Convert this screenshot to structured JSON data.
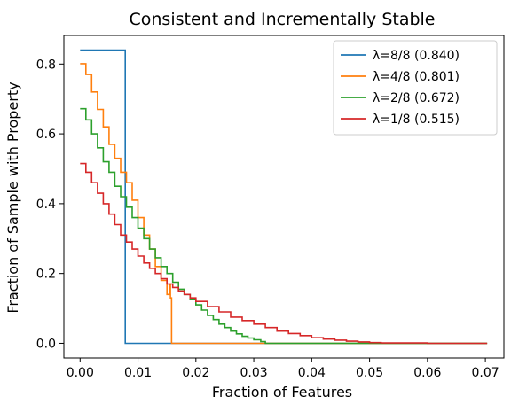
{
  "chart_data": {
    "type": "line",
    "title": "Consistent and Incrementally Stable",
    "xlabel": "Fraction of Features",
    "ylabel": "Fraction of Sample with Property",
    "xlim": [
      -0.0028,
      0.0732
    ],
    "ylim": [
      -0.042,
      0.882
    ],
    "xticks": [
      0.0,
      0.01,
      0.02,
      0.03,
      0.04,
      0.05,
      0.06,
      0.07
    ],
    "xtick_labels": [
      "0.00",
      "0.01",
      "0.02",
      "0.03",
      "0.04",
      "0.05",
      "0.06",
      "0.07"
    ],
    "yticks": [
      0.0,
      0.2,
      0.4,
      0.6,
      0.8
    ],
    "ytick_labels": [
      "0.0",
      "0.2",
      "0.4",
      "0.6",
      "0.8"
    ],
    "grid": false,
    "legend_position": "top-right",
    "series": [
      {
        "name": "λ=8/8 (0.840)",
        "color": "#1f77b4",
        "x": [
          0.0,
          0.0078,
          0.0078,
          0.0703
        ],
        "y": [
          0.84,
          0.84,
          0.0,
          0.0
        ]
      },
      {
        "name": "λ=4/8 (0.801)",
        "color": "#ff7f0e",
        "x": [
          0.0,
          0.001,
          0.002,
          0.003,
          0.004,
          0.005,
          0.006,
          0.007,
          0.008,
          0.009,
          0.01,
          0.011,
          0.012,
          0.013,
          0.014,
          0.015,
          0.0155,
          0.0156,
          0.0158,
          0.0158,
          0.0703
        ],
        "y": [
          0.801,
          0.77,
          0.72,
          0.67,
          0.62,
          0.57,
          0.53,
          0.49,
          0.46,
          0.41,
          0.36,
          0.31,
          0.27,
          0.22,
          0.18,
          0.14,
          0.17,
          0.13,
          0.12,
          0.0,
          0.0
        ]
      },
      {
        "name": "λ=2/8 (0.672)",
        "color": "#2ca02c",
        "x": [
          0.0,
          0.001,
          0.002,
          0.003,
          0.004,
          0.005,
          0.006,
          0.007,
          0.008,
          0.009,
          0.01,
          0.011,
          0.012,
          0.013,
          0.014,
          0.015,
          0.016,
          0.017,
          0.018,
          0.019,
          0.02,
          0.021,
          0.022,
          0.023,
          0.024,
          0.025,
          0.026,
          0.027,
          0.028,
          0.029,
          0.03,
          0.0312,
          0.032,
          0.04,
          0.0703
        ],
        "y": [
          0.672,
          0.64,
          0.6,
          0.56,
          0.52,
          0.49,
          0.45,
          0.42,
          0.39,
          0.36,
          0.33,
          0.3,
          0.27,
          0.245,
          0.22,
          0.2,
          0.175,
          0.155,
          0.14,
          0.125,
          0.11,
          0.095,
          0.08,
          0.068,
          0.055,
          0.045,
          0.035,
          0.027,
          0.02,
          0.015,
          0.01,
          0.005,
          0.0,
          0.0,
          0.0
        ]
      },
      {
        "name": "λ=1/8 (0.515)",
        "color": "#d62728",
        "x": [
          0.0,
          0.001,
          0.002,
          0.003,
          0.004,
          0.005,
          0.006,
          0.007,
          0.008,
          0.009,
          0.01,
          0.011,
          0.012,
          0.013,
          0.014,
          0.015,
          0.016,
          0.017,
          0.018,
          0.019,
          0.02,
          0.022,
          0.024,
          0.026,
          0.028,
          0.03,
          0.032,
          0.034,
          0.036,
          0.038,
          0.04,
          0.042,
          0.044,
          0.046,
          0.048,
          0.05,
          0.052,
          0.06,
          0.0703
        ],
        "y": [
          0.515,
          0.49,
          0.46,
          0.43,
          0.4,
          0.37,
          0.34,
          0.31,
          0.29,
          0.27,
          0.25,
          0.23,
          0.215,
          0.2,
          0.185,
          0.17,
          0.16,
          0.15,
          0.14,
          0.13,
          0.12,
          0.105,
          0.09,
          0.075,
          0.065,
          0.055,
          0.045,
          0.035,
          0.028,
          0.022,
          0.016,
          0.012,
          0.009,
          0.006,
          0.004,
          0.002,
          0.001,
          0.0,
          0.0
        ]
      }
    ]
  }
}
